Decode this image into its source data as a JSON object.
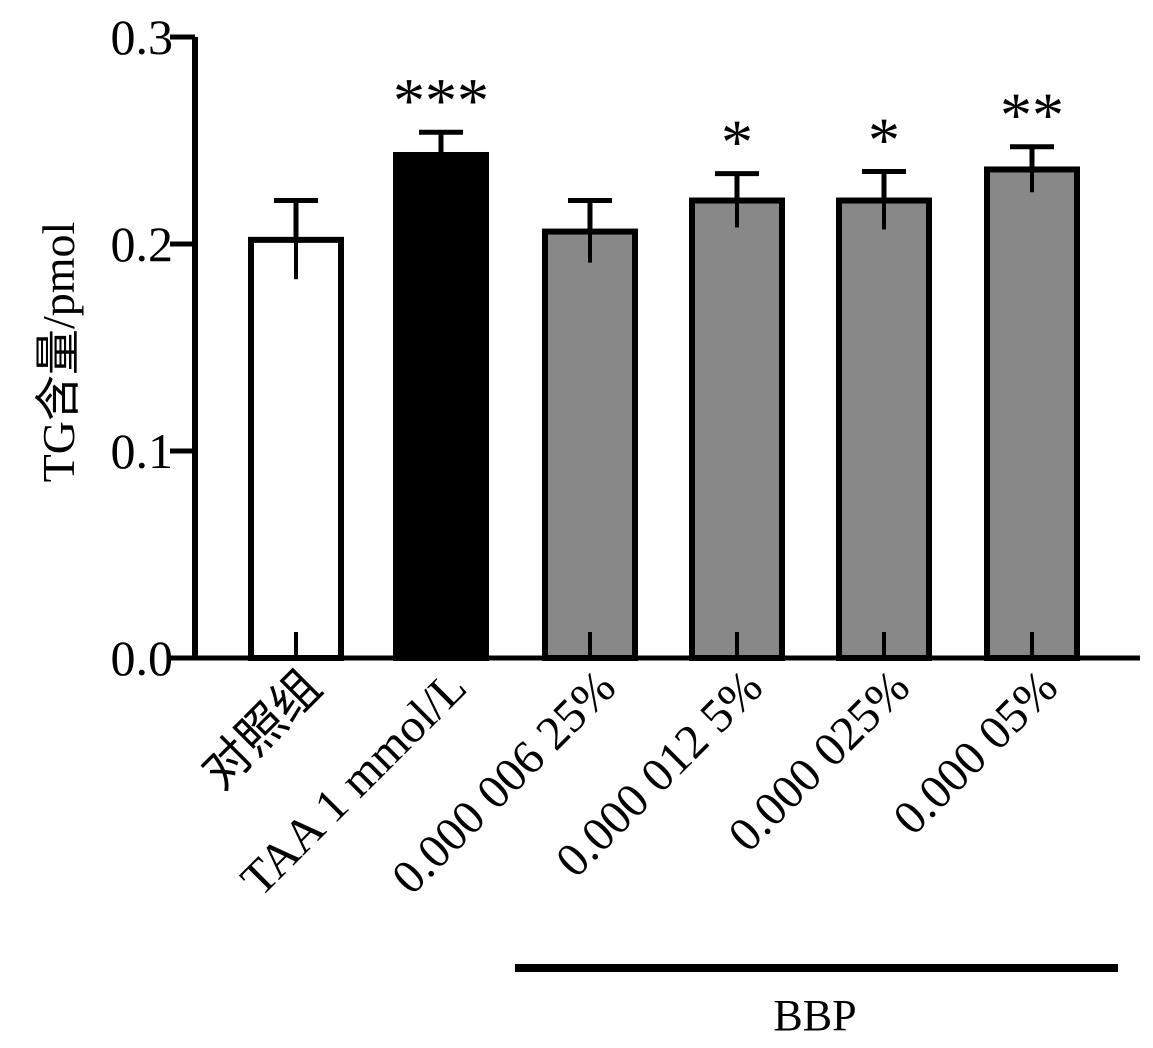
{
  "chart_data": {
    "type": "bar",
    "ylabel": "TG含量/pmol",
    "ylim": [
      0,
      0.3
    ],
    "yticks": [
      "0.0",
      "0.1",
      "0.2",
      "0.3"
    ],
    "categories": [
      "对照组",
      "TAA 1 mmol/L",
      "0.000 006 25%",
      "0.000 012 5%",
      "0.000 025%",
      "0.000 05%"
    ],
    "values": [
      0.202,
      0.243,
      0.206,
      0.221,
      0.221,
      0.236
    ],
    "errors": [
      0.019,
      0.011,
      0.015,
      0.013,
      0.014,
      0.011
    ],
    "significance": [
      "",
      "***",
      "",
      "*",
      "*",
      "**"
    ],
    "bar_colors": [
      "#ffffff",
      "#000000",
      "#888888",
      "#888888",
      "#888888",
      "#888888"
    ],
    "group_label": "BBP",
    "grid": false
  }
}
